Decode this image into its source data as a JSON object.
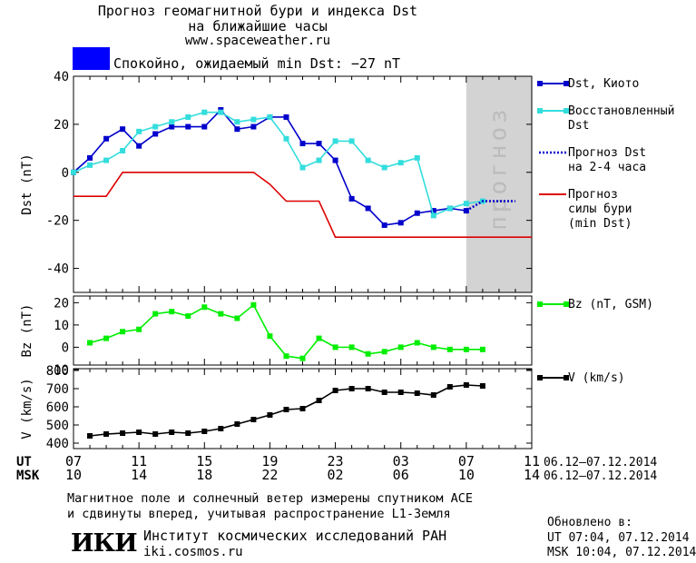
{
  "header": {
    "title_line1": "Прогноз геомагнитной бури и индекса Dst",
    "title_line2": "на ближайшие часы",
    "site": "www.spaceweather.ru",
    "status_text": "Спокойно, ожидаемый min Dst: −27 nT",
    "status_color": "#0000ff"
  },
  "footer": {
    "note_line1": "Магнитное поле и солнечный ветер измерены спутником ACE",
    "note_line2": "и сдвинуты вперед, учитывая распространение L1-Земля",
    "logo_text": "ИКИ",
    "institute": "Институт космических исследований РАН",
    "institute_site": "iki.cosmos.ru",
    "updated_label": "Обновлено в:",
    "updated_ut": "UT  07:04, 07.12.2014",
    "updated_msk": "MSK 10:04, 07.12.2014"
  },
  "chart_data": [
    {
      "type": "line",
      "id": "dst",
      "ylabel": "Dst (nT)",
      "ylim": [
        -50,
        40
      ],
      "yticks": [
        40,
        20,
        0,
        -20,
        -40
      ],
      "xlim": [
        7,
        35
      ],
      "forecast_band": {
        "x": [
          31,
          35
        ],
        "label": "прогноз",
        "color": "#d3d3d3"
      },
      "series": [
        {
          "name": "Dst, Киото",
          "color": "#0000cc",
          "style": "solid",
          "marker": "square",
          "x": [
            7,
            8,
            9,
            10,
            11,
            12,
            13,
            14,
            15,
            16,
            17,
            18,
            19,
            20,
            21,
            22,
            23,
            24,
            25,
            26,
            27,
            28,
            29,
            30,
            31
          ],
          "y": [
            0,
            6,
            14,
            18,
            11,
            16,
            19,
            19,
            19,
            26,
            18,
            19,
            23,
            23,
            12,
            12,
            5,
            -11,
            -15,
            -22,
            -21,
            -17,
            -16,
            -15,
            -16
          ]
        },
        {
          "name": "Восстановленный Dst",
          "color": "#33dddd",
          "style": "solid",
          "marker": "square",
          "x": [
            7,
            8,
            9,
            10,
            11,
            12,
            13,
            14,
            15,
            16,
            17,
            18,
            19,
            20,
            21,
            22,
            23,
            24,
            25,
            26,
            27,
            28,
            29,
            30,
            31,
            32
          ],
          "y": [
            0,
            3,
            5,
            9,
            17,
            19,
            21,
            23,
            25,
            25,
            21,
            22,
            23,
            14,
            2,
            5,
            13,
            13,
            5,
            2,
            4,
            6,
            -18,
            -15,
            -13,
            -12
          ]
        },
        {
          "name": "Прогноз Dst на 2-4 часа",
          "color": "#0000cc",
          "style": "dotted",
          "marker": "none",
          "x": [
            31,
            32,
            33,
            34
          ],
          "y": [
            -16,
            -12,
            -12,
            -12
          ]
        },
        {
          "name": "Прогноз силы бури (min Dst)",
          "color": "#dd0000",
          "style": "step",
          "marker": "none",
          "x": [
            7,
            9,
            10,
            18,
            19,
            20,
            22,
            23,
            35
          ],
          "y": [
            -10,
            -10,
            0,
            0,
            -5,
            -12,
            -12,
            -27,
            -27
          ]
        }
      ],
      "legend": [
        {
          "lines": [
            "Dst, Киото"
          ],
          "color": "#0000cc",
          "style": "solid-marker"
        },
        {
          "lines": [
            "Восстановленный",
            "Dst"
          ],
          "color": "#33dddd",
          "style": "solid-marker"
        },
        {
          "lines": [
            "Прогноз Dst",
            "на 2-4 часа"
          ],
          "color": "#0000cc",
          "style": "dotted"
        },
        {
          "lines": [
            "Прогноз",
            "силы бури",
            "(min Dst)"
          ],
          "color": "#dd0000",
          "style": "solid"
        }
      ]
    },
    {
      "type": "line",
      "id": "bz",
      "ylabel": "Bz (nT)",
      "ylim": [
        -8,
        23
      ],
      "yticks": [
        20,
        10,
        0,
        -10
      ],
      "xlim": [
        7,
        35
      ],
      "series": [
        {
          "name": "Bz (nT, GSM)",
          "color": "#00ee00",
          "style": "solid",
          "marker": "square",
          "x": [
            8,
            9,
            10,
            11,
            12,
            13,
            14,
            15,
            16,
            17,
            18,
            19,
            20,
            21,
            22,
            23,
            24,
            25,
            26,
            27,
            28,
            29,
            30,
            31,
            32
          ],
          "y": [
            2,
            4,
            7,
            8,
            15,
            16,
            14,
            18,
            15,
            13,
            19,
            5,
            -4,
            -5,
            4,
            0,
            0,
            -3,
            -2,
            0,
            2,
            0,
            -1,
            -1,
            -1
          ]
        }
      ],
      "legend": [
        {
          "lines": [
            "Bz (nT, GSM)"
          ],
          "color": "#00ee00",
          "style": "solid-marker"
        }
      ]
    },
    {
      "type": "line",
      "id": "v",
      "ylabel": "V (km/s)",
      "ylim": [
        370,
        810
      ],
      "yticks": [
        800,
        700,
        600,
        500,
        400
      ],
      "xlim": [
        7,
        35
      ],
      "xticks": {
        "values": [
          7,
          11,
          15,
          19,
          23,
          27,
          31,
          35
        ],
        "ut_row_label": "UT",
        "msk_row_label": "MSK",
        "ut_labels": [
          "07",
          "11",
          "15",
          "19",
          "23",
          "03",
          "07",
          "11"
        ],
        "msk_labels": [
          "10",
          "14",
          "18",
          "22",
          "02",
          "06",
          "10",
          "14"
        ],
        "ut_range": "06.12–07.12.2014",
        "msk_range": "06.12–07.12.2014"
      },
      "series": [
        {
          "name": "V (km/s)",
          "color": "#000000",
          "style": "solid",
          "marker": "square",
          "x": [
            8,
            9,
            10,
            11,
            12,
            13,
            14,
            15,
            16,
            17,
            18,
            19,
            20,
            21,
            22,
            23,
            24,
            25,
            26,
            27,
            28,
            29,
            30,
            31,
            32
          ],
          "y": [
            440,
            450,
            455,
            460,
            450,
            460,
            455,
            465,
            480,
            505,
            530,
            555,
            585,
            590,
            635,
            690,
            700,
            700,
            680,
            680,
            675,
            665,
            710,
            720,
            715
          ]
        }
      ],
      "legend": [
        {
          "lines": [
            "V (km/s)"
          ],
          "color": "#000000",
          "style": "solid-marker"
        }
      ]
    }
  ]
}
